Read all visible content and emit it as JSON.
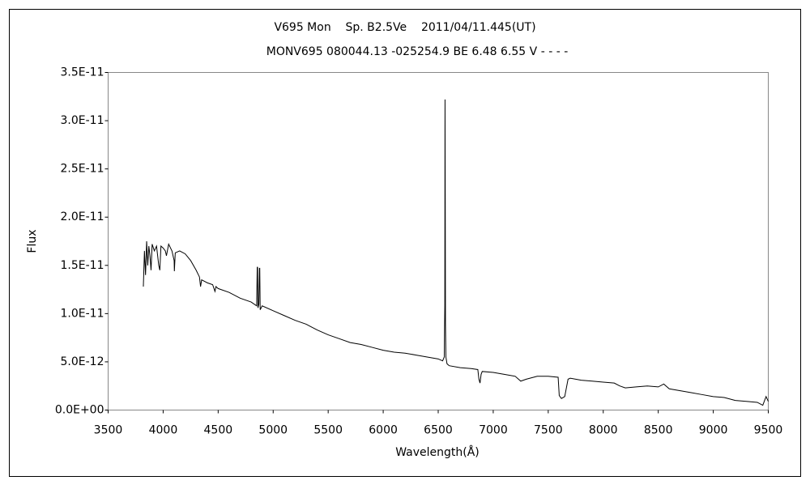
{
  "chart_data": {
    "type": "line",
    "title": "V695 Mon    Sp. B2.5Ve    2011/04/11.445(UT)",
    "subtitle": "MONV695 080044.13 -025254.9 BE 6.48 6.55 V - - - -",
    "x_label": "Wavelength(Å)",
    "y_label": "Flux",
    "color": "#000000",
    "grid": false,
    "xlim": [
      3500,
      9500
    ],
    "xticks": [
      3500,
      4000,
      4500,
      5000,
      5500,
      6000,
      6500,
      7000,
      7500,
      8000,
      8500,
      9000,
      9500
    ],
    "ylim": [
      0,
      3.5e-11
    ],
    "yticks": [
      {
        "value": 0,
        "label": "0.0E+00"
      },
      {
        "value": 5e-12,
        "label": "5.0E-12"
      },
      {
        "value": 1e-11,
        "label": "1.0E-11"
      },
      {
        "value": 1.5e-11,
        "label": "1.5E-11"
      },
      {
        "value": 2e-11,
        "label": "2.0E-11"
      },
      {
        "value": 2.5e-11,
        "label": "2.5E-11"
      },
      {
        "value": 3e-11,
        "label": "3.0E-11"
      },
      {
        "value": 3.5e-11,
        "label": "3.5E-11"
      }
    ],
    "x": [
      3820,
      3830,
      3840,
      3850,
      3860,
      3870,
      3880,
      3890,
      3900,
      3920,
      3940,
      3960,
      3970,
      3980,
      4000,
      4020,
      4030,
      4050,
      4080,
      4100,
      4102,
      4110,
      4150,
      4200,
      4250,
      4300,
      4330,
      4340,
      4350,
      4400,
      4450,
      4471,
      4480,
      4500,
      4600,
      4700,
      4800,
      4850,
      4855,
      4858,
      4862,
      4870,
      4875,
      4878,
      4882,
      4900,
      5000,
      5100,
      5200,
      5300,
      5400,
      5500,
      5600,
      5700,
      5800,
      5900,
      6000,
      6100,
      6200,
      6300,
      6400,
      6500,
      6540,
      6555,
      6560,
      6562,
      6564,
      6566,
      6570,
      6580,
      6600,
      6700,
      6800,
      6860,
      6870,
      6880,
      6890,
      6900,
      7000,
      7100,
      7200,
      7250,
      7300,
      7400,
      7500,
      7590,
      7600,
      7620,
      7650,
      7680,
      7700,
      7800,
      7900,
      8000,
      8100,
      8150,
      8200,
      8300,
      8400,
      8500,
      8550,
      8600,
      8700,
      8800,
      8900,
      9000,
      9100,
      9200,
      9300,
      9400,
      9450,
      9480,
      9500
    ],
    "values": [
      1.28e-11,
      1.65e-11,
      1.4e-11,
      1.75e-11,
      1.5e-11,
      1.7e-11,
      1.6e-11,
      1.45e-11,
      1.72e-11,
      1.65e-11,
      1.7e-11,
      1.5e-11,
      1.45e-11,
      1.7e-11,
      1.68e-11,
      1.65e-11,
      1.6e-11,
      1.72e-11,
      1.65e-11,
      1.55e-11,
      1.44e-11,
      1.63e-11,
      1.65e-11,
      1.62e-11,
      1.55e-11,
      1.45e-11,
      1.38e-11,
      1.28e-11,
      1.35e-11,
      1.32e-11,
      1.3e-11,
      1.23e-11,
      1.28e-11,
      1.26e-11,
      1.22e-11,
      1.16e-11,
      1.12e-11,
      1.08e-11,
      1.48e-11,
      1.48e-11,
      1.06e-11,
      1.1e-11,
      1.47e-11,
      1.47e-11,
      1.04e-11,
      1.08e-11,
      1.03e-11,
      9.8e-12,
      9.3e-12,
      8.9e-12,
      8.3e-12,
      7.8e-12,
      7.4e-12,
      7e-12,
      6.8e-12,
      6.5e-12,
      6.2e-12,
      6e-12,
      5.9e-12,
      5.7e-12,
      5.5e-12,
      5.3e-12,
      5.1e-12,
      5.5e-12,
      1.08e-11,
      3.22e-11,
      2.18e-11,
      9e-12,
      5.5e-12,
      4.8e-12,
      4.6e-12,
      4.4e-12,
      4.3e-12,
      4.2e-12,
      3.2e-12,
      2.8e-12,
      3.7e-12,
      4e-12,
      3.9e-12,
      3.7e-12,
      3.5e-12,
      3e-12,
      3.2e-12,
      3.5e-12,
      3.5e-12,
      3.4e-12,
      1.5e-12,
      1.2e-12,
      1.4e-12,
      3.2e-12,
      3.3e-12,
      3.1e-12,
      3e-12,
      2.9e-12,
      2.8e-12,
      2.5e-12,
      2.3e-12,
      2.4e-12,
      2.5e-12,
      2.4e-12,
      2.7e-12,
      2.2e-12,
      2e-12,
      1.8e-12,
      1.6e-12,
      1.4e-12,
      1.3e-12,
      1e-12,
      9e-13,
      8e-13,
      5e-13,
      1.4e-12,
      9e-13
    ]
  }
}
